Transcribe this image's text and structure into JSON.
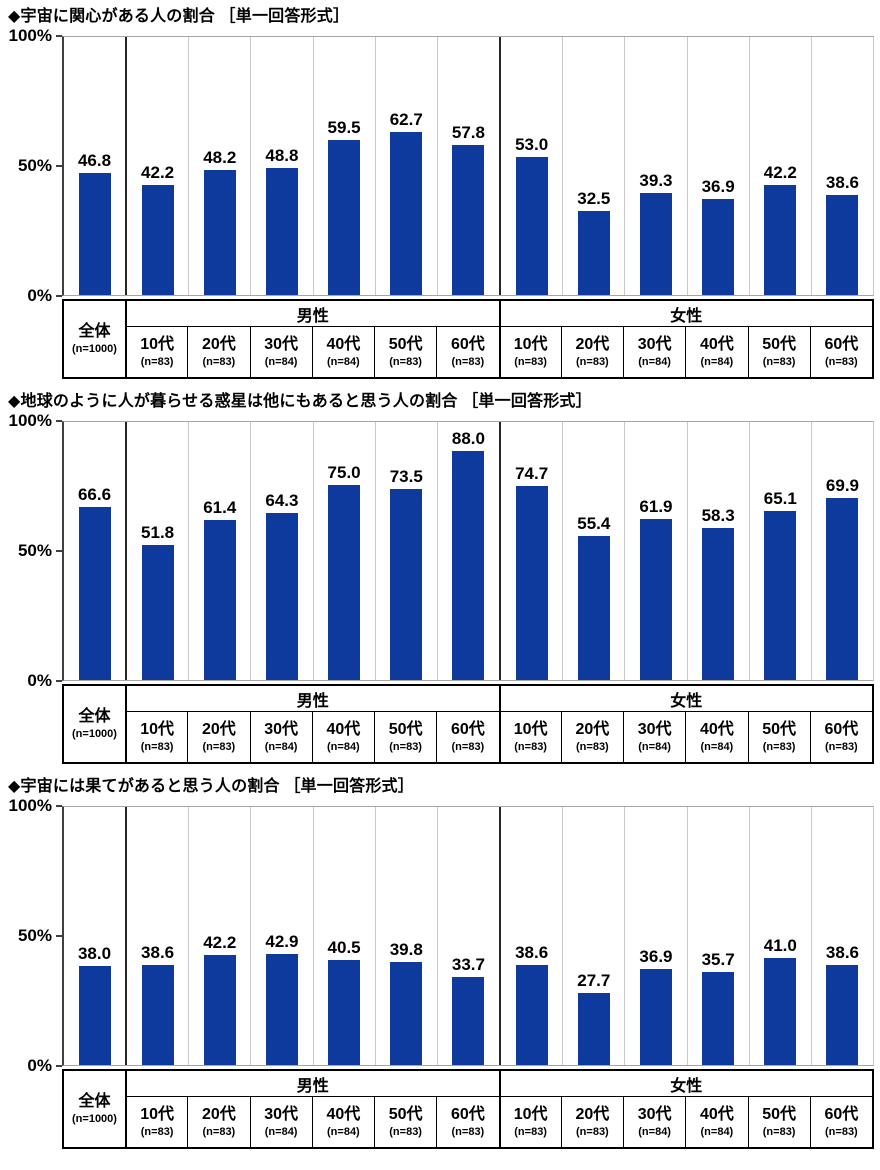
{
  "bar_color": "#0d3a9c",
  "axis": {
    "yticks": [
      "0%",
      "50%",
      "100%"
    ],
    "ylim": [
      0,
      100
    ]
  },
  "category_table": {
    "overall": {
      "label": "全体",
      "n": "(n=1000)"
    },
    "groups": [
      {
        "label": "男性",
        "cols": [
          {
            "label": "10代",
            "n": "(n=83)"
          },
          {
            "label": "20代",
            "n": "(n=83)"
          },
          {
            "label": "30代",
            "n": "(n=84)"
          },
          {
            "label": "40代",
            "n": "(n=84)"
          },
          {
            "label": "50代",
            "n": "(n=83)"
          },
          {
            "label": "60代",
            "n": "(n=83)"
          }
        ]
      },
      {
        "label": "女性",
        "cols": [
          {
            "label": "10代",
            "n": "(n=83)"
          },
          {
            "label": "20代",
            "n": "(n=83)"
          },
          {
            "label": "30代",
            "n": "(n=84)"
          },
          {
            "label": "40代",
            "n": "(n=84)"
          },
          {
            "label": "50代",
            "n": "(n=83)"
          },
          {
            "label": "60代",
            "n": "(n=83)"
          }
        ]
      }
    ]
  },
  "chart_data": [
    {
      "type": "bar",
      "title": "◆宇宙に関心がある人の割合 ［単一回答形式］",
      "categories": [
        "全体",
        "男性 10代",
        "男性 20代",
        "男性 30代",
        "男性 40代",
        "男性 50代",
        "男性 60代",
        "女性 10代",
        "女性 20代",
        "女性 30代",
        "女性 40代",
        "女性 50代",
        "女性 60代"
      ],
      "values": [
        46.8,
        42.2,
        48.2,
        48.8,
        59.5,
        62.7,
        57.8,
        53.0,
        32.5,
        39.3,
        36.9,
        42.2,
        38.6
      ],
      "ylim": [
        0,
        100
      ],
      "yticks": [
        "0%",
        "50%",
        "100%"
      ],
      "grid": false,
      "legend": null
    },
    {
      "type": "bar",
      "title": "◆地球のように人が暮らせる惑星は他にもあると思う人の割合 ［単一回答形式］",
      "categories": [
        "全体",
        "男性 10代",
        "男性 20代",
        "男性 30代",
        "男性 40代",
        "男性 50代",
        "男性 60代",
        "女性 10代",
        "女性 20代",
        "女性 30代",
        "女性 40代",
        "女性 50代",
        "女性 60代"
      ],
      "values": [
        66.6,
        51.8,
        61.4,
        64.3,
        75.0,
        73.5,
        88.0,
        74.7,
        55.4,
        61.9,
        58.3,
        65.1,
        69.9
      ],
      "ylim": [
        0,
        100
      ],
      "yticks": [
        "0%",
        "50%",
        "100%"
      ],
      "grid": false,
      "legend": null
    },
    {
      "type": "bar",
      "title": "◆宇宙には果てがあると思う人の割合 ［単一回答形式］",
      "categories": [
        "全体",
        "男性 10代",
        "男性 20代",
        "男性 30代",
        "男性 40代",
        "男性 50代",
        "男性 60代",
        "女性 10代",
        "女性 20代",
        "女性 30代",
        "女性 40代",
        "女性 50代",
        "女性 60代"
      ],
      "values": [
        38.0,
        38.6,
        42.2,
        42.9,
        40.5,
        39.8,
        33.7,
        38.6,
        27.7,
        36.9,
        35.7,
        41.0,
        38.6
      ],
      "ylim": [
        0,
        100
      ],
      "yticks": [
        "0%",
        "50%",
        "100%"
      ],
      "grid": false,
      "legend": null
    }
  ]
}
